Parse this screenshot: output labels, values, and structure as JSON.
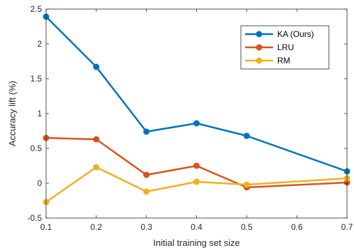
{
  "chart_data": {
    "type": "line",
    "xlabel": "Initial training set size",
    "ylabel": "Accuracy lift (%)",
    "xlim": [
      0.1,
      0.7
    ],
    "ylim": [
      -0.5,
      2.5
    ],
    "xticks": [
      0.1,
      0.2,
      0.3,
      0.4,
      0.5,
      0.6,
      0.7
    ],
    "xtick_labels": [
      "0.1",
      "0.2",
      "0.3",
      "0.4",
      "0.5",
      "0.6",
      "0.7"
    ],
    "yticks": [
      -0.5,
      0,
      0.5,
      1,
      1.5,
      2,
      2.5
    ],
    "ytick_labels": [
      "-0.5",
      "0",
      "0.5",
      "1",
      "1.5",
      "2",
      "2.5"
    ],
    "grid": false,
    "legend_position": "top-right",
    "x": [
      0.1,
      0.2,
      0.3,
      0.4,
      0.5,
      0.7
    ],
    "series": [
      {
        "name": "KA (Ours)",
        "color": "#0072BD",
        "values": [
          2.39,
          1.67,
          0.74,
          0.86,
          0.68,
          0.17
        ]
      },
      {
        "name": "LRU",
        "color": "#D95319",
        "values": [
          0.65,
          0.63,
          0.12,
          0.25,
          -0.06,
          0.01
        ]
      },
      {
        "name": "RM",
        "color": "#EDB120",
        "values": [
          -0.27,
          0.23,
          -0.12,
          0.02,
          -0.02,
          0.07
        ]
      }
    ]
  }
}
